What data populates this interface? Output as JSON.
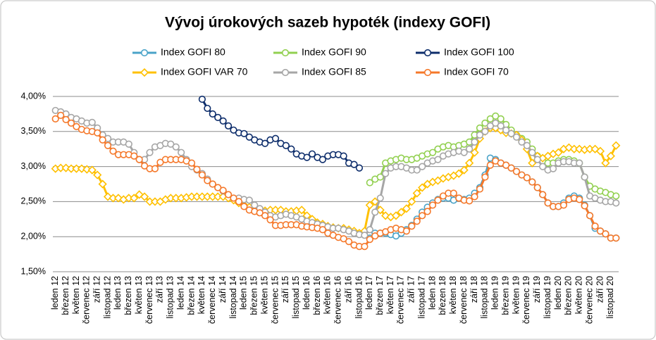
{
  "chart_data": {
    "type": "line",
    "title": "Vývoj úrokových sazeb hypoték (indexy GOFI)",
    "legend": "top",
    "grid": true,
    "categories": [
      "leden 12",
      null,
      "březen 12",
      null,
      "květen 12",
      null,
      "červenec 12",
      null,
      "září 12",
      null,
      "listopad 12",
      null,
      "leden 13",
      null,
      "březen 13",
      null,
      "květen 13",
      null,
      "červenec 13",
      null,
      "září 13",
      null,
      "listopad 13",
      null,
      "leden 14",
      null,
      "březen 14",
      null,
      "květen 14",
      null,
      "červenec 14",
      null,
      "září 14",
      null,
      "listopad 14",
      null,
      "leden 15",
      null,
      "březen 15",
      null,
      "květen 15",
      null,
      "červenec 15",
      null,
      "září 15",
      null,
      "listopad 15",
      null,
      "leden 16",
      null,
      "březen 16",
      null,
      "květen 16",
      null,
      "červenec 16",
      null,
      "září 16",
      null,
      "listopad 16",
      null,
      "leden 17",
      null,
      "březen 17",
      null,
      "květen 17",
      null,
      "červenec 17",
      null,
      "září 17",
      null,
      "listopad 17",
      null,
      "leden 18",
      null,
      "březen 18",
      null,
      "květen 18",
      null,
      "červenec 18",
      null,
      "září 18",
      null,
      "listopad 18",
      null,
      "leden 19",
      null,
      "březen 19",
      null,
      "květen 19",
      null,
      "červenec 19",
      null,
      "září 19",
      null,
      "listopad 19",
      null,
      "leden 20",
      null,
      "březen 20",
      null,
      "květen 20",
      null,
      "červenec 20",
      null,
      "září 20",
      null,
      "listopad 20",
      null
    ],
    "ylim": [
      1.5,
      4.0
    ],
    "yticks": [
      {
        "value": 1.5,
        "label": "1,50%"
      },
      {
        "value": 2.0,
        "label": "2,00%"
      },
      {
        "value": 2.5,
        "label": "2,50%"
      },
      {
        "value": 3.0,
        "label": "3,00%"
      },
      {
        "value": 3.5,
        "label": "3,50%"
      },
      {
        "value": 4.0,
        "label": "4,00%"
      }
    ],
    "series": [
      {
        "name": "Index GOFI 80",
        "color": "#4aa3c8",
        "marker": "circle",
        "values": [
          null,
          null,
          null,
          null,
          null,
          null,
          null,
          null,
          null,
          null,
          null,
          null,
          null,
          null,
          null,
          null,
          null,
          null,
          null,
          null,
          null,
          null,
          null,
          null,
          null,
          null,
          null,
          null,
          null,
          null,
          null,
          null,
          null,
          null,
          null,
          null,
          null,
          null,
          null,
          null,
          null,
          null,
          null,
          null,
          null,
          null,
          null,
          null,
          null,
          null,
          null,
          null,
          null,
          null,
          null,
          null,
          null,
          null,
          null,
          null,
          1.98,
          2.05,
          2.05,
          2.05,
          2.03,
          2.01,
          2.05,
          2.1,
          2.16,
          2.25,
          2.35,
          2.42,
          2.48,
          2.53,
          2.55,
          2.55,
          2.52,
          2.55,
          2.53,
          2.55,
          2.62,
          2.7,
          2.88,
          3.12,
          3.1,
          3.05,
          3.02,
          2.98,
          2.93,
          2.88,
          2.84,
          2.78,
          2.7,
          2.6,
          2.48,
          2.43,
          2.43,
          2.48,
          2.55,
          2.58,
          2.55,
          2.45,
          2.3,
          2.12,
          2.08,
          2.04,
          1.98,
          1.98
        ]
      },
      {
        "name": "Index GOFI 90",
        "color": "#92d050",
        "marker": "circle",
        "values": [
          null,
          null,
          null,
          null,
          null,
          null,
          null,
          null,
          null,
          null,
          null,
          null,
          null,
          null,
          null,
          null,
          null,
          null,
          null,
          null,
          null,
          null,
          null,
          null,
          null,
          null,
          null,
          null,
          null,
          null,
          null,
          null,
          null,
          null,
          null,
          null,
          null,
          null,
          null,
          null,
          null,
          null,
          null,
          null,
          null,
          null,
          null,
          null,
          null,
          null,
          null,
          null,
          null,
          null,
          null,
          null,
          null,
          null,
          null,
          null,
          2.77,
          2.82,
          2.85,
          3.05,
          3.08,
          3.1,
          3.12,
          3.1,
          3.1,
          3.12,
          3.15,
          3.18,
          3.2,
          3.25,
          3.28,
          3.3,
          3.28,
          3.3,
          3.32,
          3.35,
          3.45,
          3.55,
          3.62,
          3.68,
          3.72,
          3.68,
          3.6,
          3.52,
          3.45,
          3.4,
          3.35,
          3.25,
          3.15,
          3.08,
          3.05,
          3.05,
          3.08,
          3.1,
          3.1,
          3.08,
          3.05,
          2.85,
          2.72,
          2.68,
          2.65,
          2.63,
          2.6,
          2.58
        ]
      },
      {
        "name": "Index GOFI 100",
        "color": "#0d2d6b",
        "marker": "circle",
        "values": [
          null,
          null,
          null,
          null,
          null,
          null,
          null,
          null,
          null,
          null,
          null,
          null,
          null,
          null,
          null,
          null,
          null,
          null,
          null,
          null,
          null,
          null,
          null,
          null,
          null,
          null,
          null,
          null,
          3.96,
          3.83,
          3.75,
          3.7,
          3.65,
          3.58,
          3.52,
          3.48,
          3.47,
          3.42,
          3.38,
          3.35,
          3.33,
          3.38,
          3.4,
          3.33,
          3.3,
          3.25,
          3.18,
          3.15,
          3.13,
          3.18,
          3.13,
          3.1,
          3.15,
          3.17,
          3.17,
          3.15,
          3.05,
          3.03,
          2.98,
          null,
          null,
          null,
          null,
          null,
          null,
          null,
          null,
          null,
          null,
          null,
          null,
          null,
          null,
          null,
          null,
          null,
          null,
          null,
          null,
          null,
          null,
          null,
          null,
          null,
          null,
          null,
          null,
          null,
          null,
          null,
          null,
          null,
          null,
          null,
          null,
          null,
          null,
          null,
          null,
          null,
          null,
          null,
          null,
          null,
          null,
          null,
          null,
          null
        ]
      },
      {
        "name": "Index GOFI VAR 70",
        "color": "#ffc000",
        "marker": "diamond",
        "values": [
          2.97,
          2.98,
          2.98,
          2.97,
          2.97,
          2.97,
          2.96,
          2.95,
          2.88,
          2.75,
          2.57,
          2.55,
          2.55,
          2.53,
          2.55,
          2.55,
          2.6,
          2.57,
          2.5,
          2.5,
          2.5,
          2.53,
          2.55,
          2.55,
          2.55,
          2.56,
          2.57,
          2.57,
          2.57,
          2.57,
          2.57,
          2.57,
          2.57,
          2.55,
          2.52,
          2.48,
          2.45,
          2.42,
          2.38,
          2.37,
          2.37,
          2.38,
          2.38,
          2.38,
          2.36,
          2.36,
          2.37,
          2.38,
          2.3,
          2.25,
          2.2,
          2.18,
          2.15,
          2.13,
          2.12,
          2.12,
          2.1,
          2.08,
          2.05,
          2.08,
          2.45,
          2.5,
          2.38,
          2.3,
          2.28,
          2.3,
          2.35,
          2.4,
          2.5,
          2.62,
          2.7,
          2.75,
          2.78,
          2.8,
          2.83,
          2.85,
          2.87,
          2.9,
          2.95,
          3.05,
          3.2,
          3.4,
          3.5,
          3.55,
          3.55,
          3.52,
          3.48,
          3.47,
          3.45,
          3.38,
          3.25,
          3.05,
          3.15,
          3.12,
          3.15,
          3.18,
          3.2,
          3.25,
          3.27,
          3.25,
          3.25,
          3.24,
          3.25,
          3.25,
          3.22,
          3.05,
          3.15,
          3.3
        ]
      },
      {
        "name": "Index GOFI 85",
        "color": "#a6a6a6",
        "marker": "circle",
        "values": [
          3.8,
          3.78,
          3.75,
          3.7,
          3.68,
          3.65,
          3.62,
          3.63,
          3.55,
          3.45,
          3.4,
          3.35,
          3.35,
          3.35,
          3.32,
          3.2,
          3.1,
          3.1,
          3.2,
          3.28,
          3.3,
          3.33,
          3.32,
          3.28,
          3.2,
          3.1,
          3.0,
          2.95,
          2.9,
          2.82,
          2.75,
          2.7,
          2.65,
          2.6,
          2.55,
          2.55,
          2.53,
          2.52,
          2.45,
          2.4,
          2.35,
          2.3,
          2.28,
          2.3,
          2.32,
          2.3,
          2.28,
          2.25,
          2.22,
          2.2,
          2.18,
          2.16,
          2.14,
          2.12,
          2.12,
          2.1,
          2.08,
          2.05,
          2.03,
          2.02,
          2.1,
          2.35,
          2.55,
          2.9,
          2.98,
          3.0,
          3.0,
          2.98,
          2.95,
          2.95,
          3.0,
          3.05,
          3.08,
          3.1,
          3.15,
          3.18,
          3.2,
          3.22,
          3.2,
          3.25,
          3.35,
          3.45,
          3.5,
          3.58,
          3.62,
          3.58,
          3.52,
          3.47,
          3.42,
          3.35,
          3.3,
          3.2,
          3.1,
          3.0,
          2.95,
          2.97,
          3.05,
          3.07,
          3.07,
          3.05,
          3.05,
          2.85,
          2.58,
          2.55,
          2.52,
          2.5,
          2.5,
          2.48
        ]
      },
      {
        "name": "Index GOFI 70",
        "color": "#f5782a",
        "marker": "circle",
        "values": [
          3.68,
          3.73,
          3.67,
          3.62,
          3.57,
          3.53,
          3.51,
          3.5,
          3.48,
          3.38,
          3.3,
          3.22,
          3.17,
          3.17,
          3.17,
          3.15,
          3.1,
          3.01,
          2.97,
          2.97,
          3.06,
          3.1,
          3.1,
          3.1,
          3.1,
          3.08,
          3.05,
          2.96,
          2.88,
          2.8,
          2.75,
          2.7,
          2.66,
          2.6,
          2.55,
          2.5,
          2.43,
          2.38,
          2.36,
          2.34,
          2.3,
          2.24,
          2.16,
          2.16,
          2.17,
          2.17,
          2.17,
          2.15,
          2.14,
          2.13,
          2.12,
          2.1,
          2.05,
          2.02,
          1.99,
          1.97,
          1.93,
          1.88,
          1.86,
          1.86,
          1.96,
          2.01,
          2.05,
          2.07,
          2.1,
          2.12,
          2.1,
          2.08,
          2.15,
          2.22,
          2.3,
          2.36,
          2.45,
          2.52,
          2.58,
          2.62,
          2.62,
          2.55,
          2.52,
          2.51,
          2.57,
          2.68,
          2.85,
          3.02,
          3.08,
          3.05,
          3.02,
          2.98,
          2.93,
          2.88,
          2.84,
          2.78,
          2.7,
          2.6,
          2.48,
          2.43,
          2.43,
          2.45,
          2.53,
          2.55,
          2.53,
          2.44,
          2.3,
          2.15,
          2.08,
          2.04,
          1.98,
          1.98
        ]
      }
    ]
  }
}
